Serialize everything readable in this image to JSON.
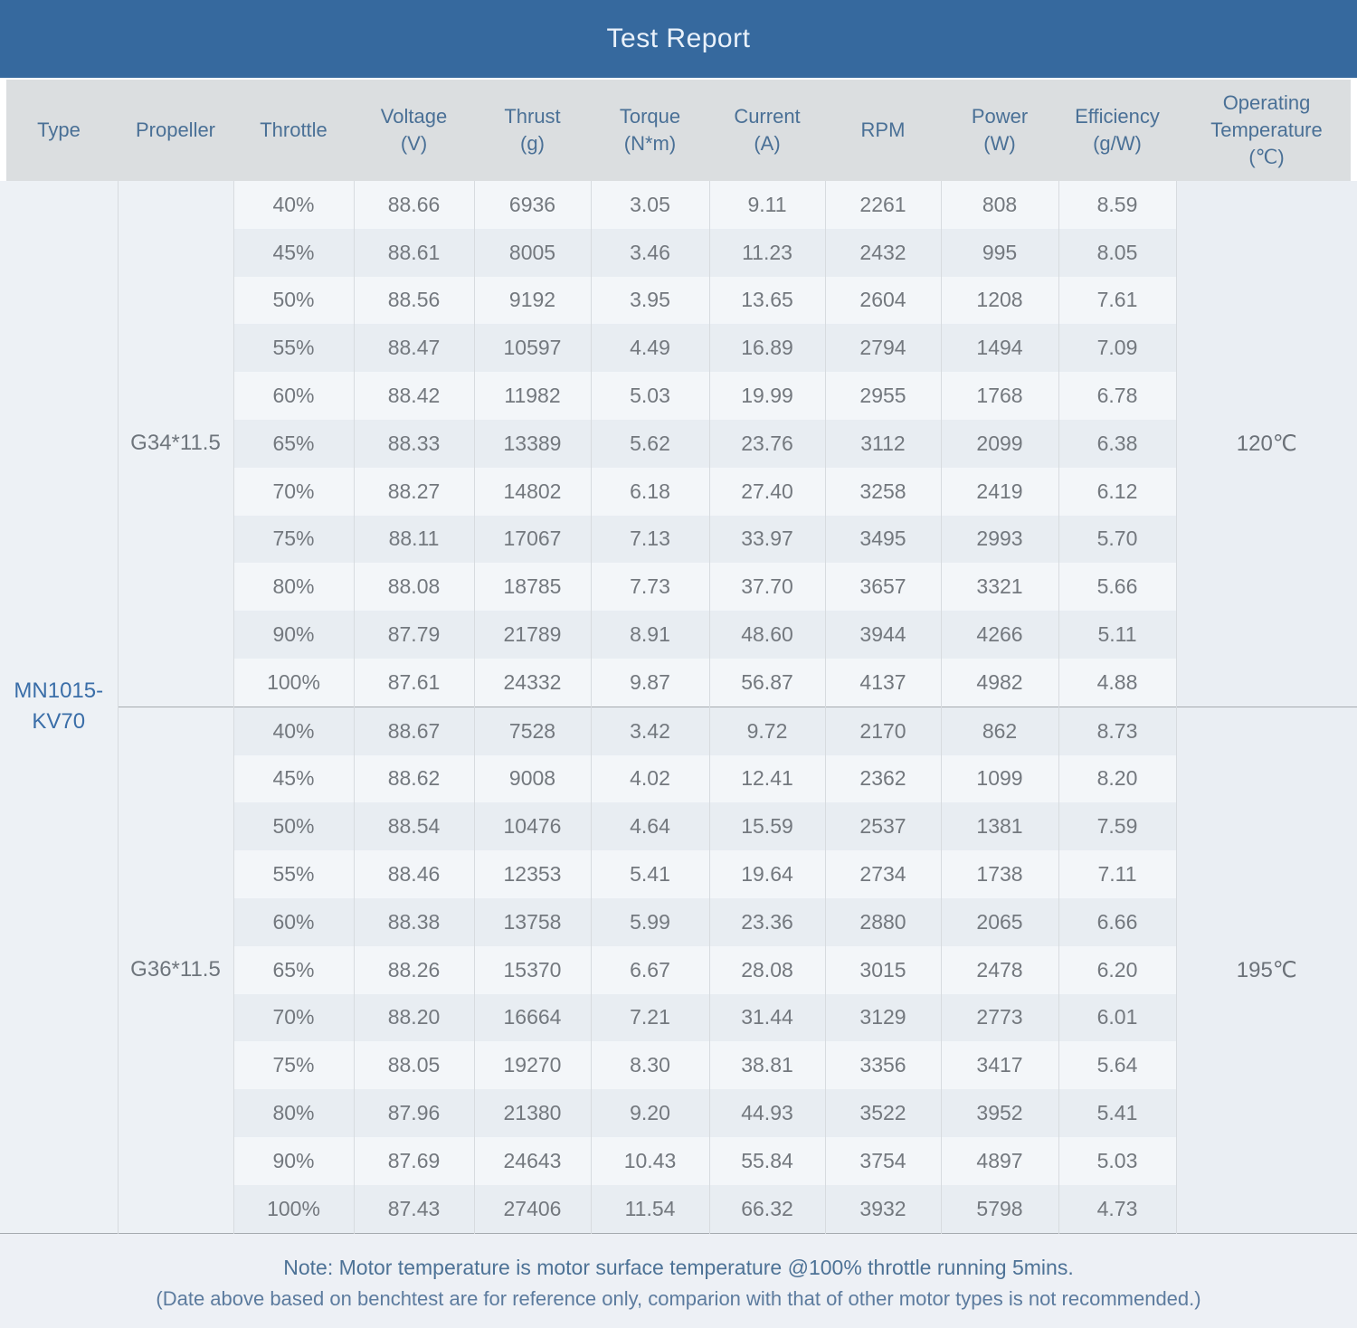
{
  "title": "Test Report",
  "colors": {
    "title_bar_background": "#36699e",
    "title_text": "#e9f1fa",
    "column_header_background": "#dbdee0",
    "column_header_text": "#4a7096",
    "row_light": "#f3f6f9",
    "row_dark": "#e8edf2",
    "span_cell_background": "#edf1f5",
    "operating_temp_cell_background": "#eaeef3",
    "body_text": "#73787e",
    "type_text": "#3a6ea8",
    "note_text": "#4d7296",
    "footer_background": "#edf0f5",
    "cell_border": "#d7dbdf",
    "group_border": "#a6abb0"
  },
  "chart_data": {
    "type": "table",
    "title": "Test Report",
    "columns": [
      {
        "label": "Type",
        "unit": ""
      },
      {
        "label": "Propeller",
        "unit": ""
      },
      {
        "label": "Throttle",
        "unit": ""
      },
      {
        "label": "Voltage",
        "unit": "(V)"
      },
      {
        "label": "Thrust",
        "unit": "(g)"
      },
      {
        "label": "Torque",
        "unit": "(N*m)"
      },
      {
        "label": "Current",
        "unit": "(A)"
      },
      {
        "label": "RPM",
        "unit": ""
      },
      {
        "label": "Power",
        "unit": "(W)"
      },
      {
        "label": "Efficiency",
        "unit": "(g/W)"
      },
      {
        "label": "Operating Temperature",
        "unit": "(℃)"
      }
    ],
    "column_keys": [
      "throttle",
      "voltage",
      "thrust",
      "torque",
      "current",
      "rpm",
      "power",
      "efficiency"
    ],
    "motor_type": {
      "label": "MN1015-KV70",
      "lines": [
        "MN1015-",
        "KV70"
      ]
    },
    "sections": [
      {
        "propeller": "G34*11.5",
        "operating_temperature": "120℃",
        "rows": [
          [
            "40%",
            "88.66",
            "6936",
            "3.05",
            "9.11",
            "2261",
            "808",
            "8.59"
          ],
          [
            "45%",
            "88.61",
            "8005",
            "3.46",
            "11.23",
            "2432",
            "995",
            "8.05"
          ],
          [
            "50%",
            "88.56",
            "9192",
            "3.95",
            "13.65",
            "2604",
            "1208",
            "7.61"
          ],
          [
            "55%",
            "88.47",
            "10597",
            "4.49",
            "16.89",
            "2794",
            "1494",
            "7.09"
          ],
          [
            "60%",
            "88.42",
            "11982",
            "5.03",
            "19.99",
            "2955",
            "1768",
            "6.78"
          ],
          [
            "65%",
            "88.33",
            "13389",
            "5.62",
            "23.76",
            "3112",
            "2099",
            "6.38"
          ],
          [
            "70%",
            "88.27",
            "14802",
            "6.18",
            "27.40",
            "3258",
            "2419",
            "6.12"
          ],
          [
            "75%",
            "88.11",
            "17067",
            "7.13",
            "33.97",
            "3495",
            "2993",
            "5.70"
          ],
          [
            "80%",
            "88.08",
            "18785",
            "7.73",
            "37.70",
            "3657",
            "3321",
            "5.66"
          ],
          [
            "90%",
            "87.79",
            "21789",
            "8.91",
            "48.60",
            "3944",
            "4266",
            "5.11"
          ],
          [
            "100%",
            "87.61",
            "24332",
            "9.87",
            "56.87",
            "4137",
            "4982",
            "4.88"
          ]
        ]
      },
      {
        "propeller": "G36*11.5",
        "operating_temperature": "195℃",
        "rows": [
          [
            "40%",
            "88.67",
            "7528",
            "3.42",
            "9.72",
            "2170",
            "862",
            "8.73"
          ],
          [
            "45%",
            "88.62",
            "9008",
            "4.02",
            "12.41",
            "2362",
            "1099",
            "8.20"
          ],
          [
            "50%",
            "88.54",
            "10476",
            "4.64",
            "15.59",
            "2537",
            "1381",
            "7.59"
          ],
          [
            "55%",
            "88.46",
            "12353",
            "5.41",
            "19.64",
            "2734",
            "1738",
            "7.11"
          ],
          [
            "60%",
            "88.38",
            "13758",
            "5.99",
            "23.36",
            "2880",
            "2065",
            "6.66"
          ],
          [
            "65%",
            "88.26",
            "15370",
            "6.67",
            "28.08",
            "3015",
            "2478",
            "6.20"
          ],
          [
            "70%",
            "88.20",
            "16664",
            "7.21",
            "31.44",
            "3129",
            "2773",
            "6.01"
          ],
          [
            "75%",
            "88.05",
            "19270",
            "8.30",
            "38.81",
            "3356",
            "3417",
            "5.64"
          ],
          [
            "80%",
            "87.96",
            "21380",
            "9.20",
            "44.93",
            "3522",
            "3952",
            "5.41"
          ],
          [
            "90%",
            "87.69",
            "24643",
            "10.43",
            "55.84",
            "3754",
            "4897",
            "5.03"
          ],
          [
            "100%",
            "87.43",
            "27406",
            "11.54",
            "66.32",
            "3932",
            "5798",
            "4.73"
          ]
        ]
      }
    ]
  },
  "notes": {
    "line1": "Note: Motor temperature is motor surface temperature @100% throttle running 5mins.",
    "line2": "(Date above based on benchtest are for reference only, comparion with that of other motor types is not recommended.)"
  }
}
